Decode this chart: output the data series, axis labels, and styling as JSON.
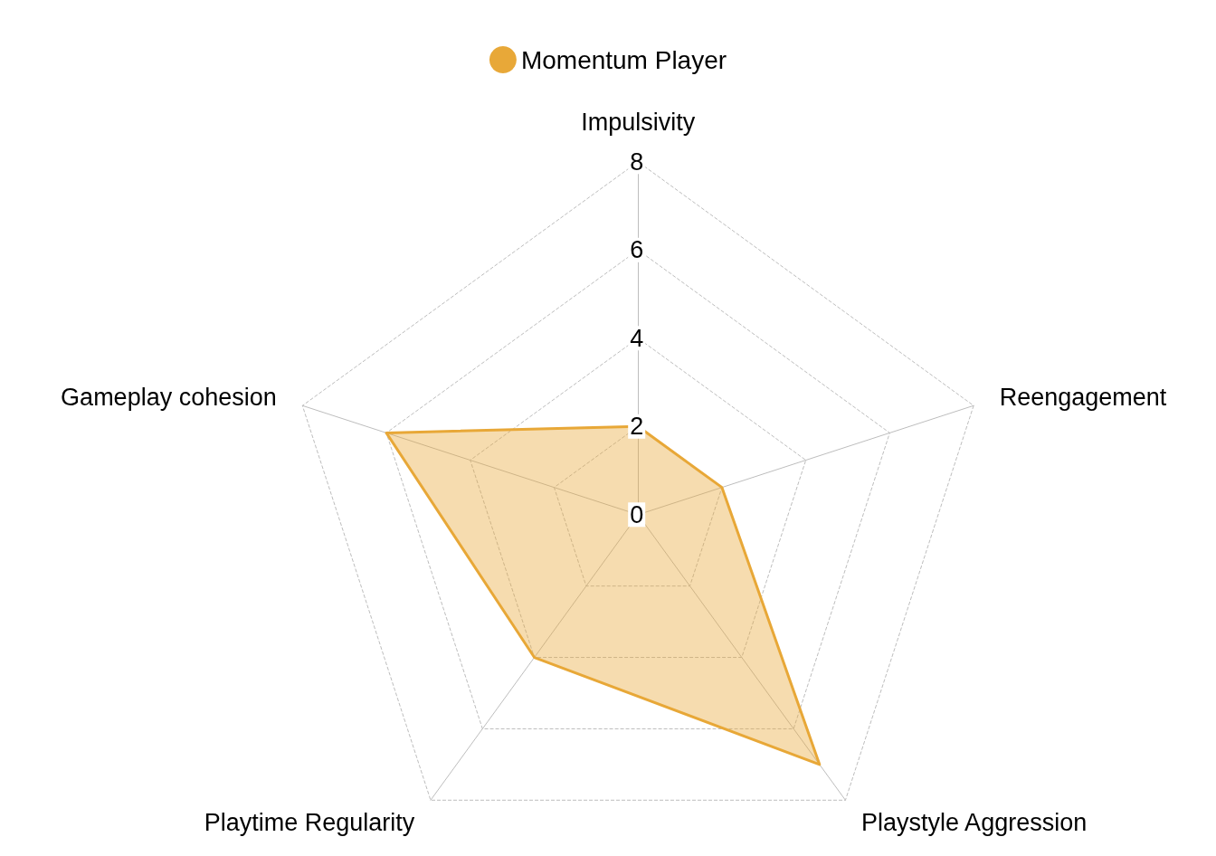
{
  "chart_data": {
    "type": "radar",
    "categories": [
      "Impulsivity",
      "Reengagement",
      "Playstyle Aggression",
      "Playtime Regularity",
      "Gameplay cohesion"
    ],
    "series": [
      {
        "name": "Momentum Player",
        "color": "#e8a838",
        "values": [
          2,
          2,
          7,
          4,
          6
        ]
      }
    ],
    "ylim": [
      0,
      8
    ],
    "yticks": [
      0,
      2,
      4,
      6,
      8
    ],
    "grid": true,
    "legend": "top",
    "line_style": "solid",
    "marker": "none"
  }
}
